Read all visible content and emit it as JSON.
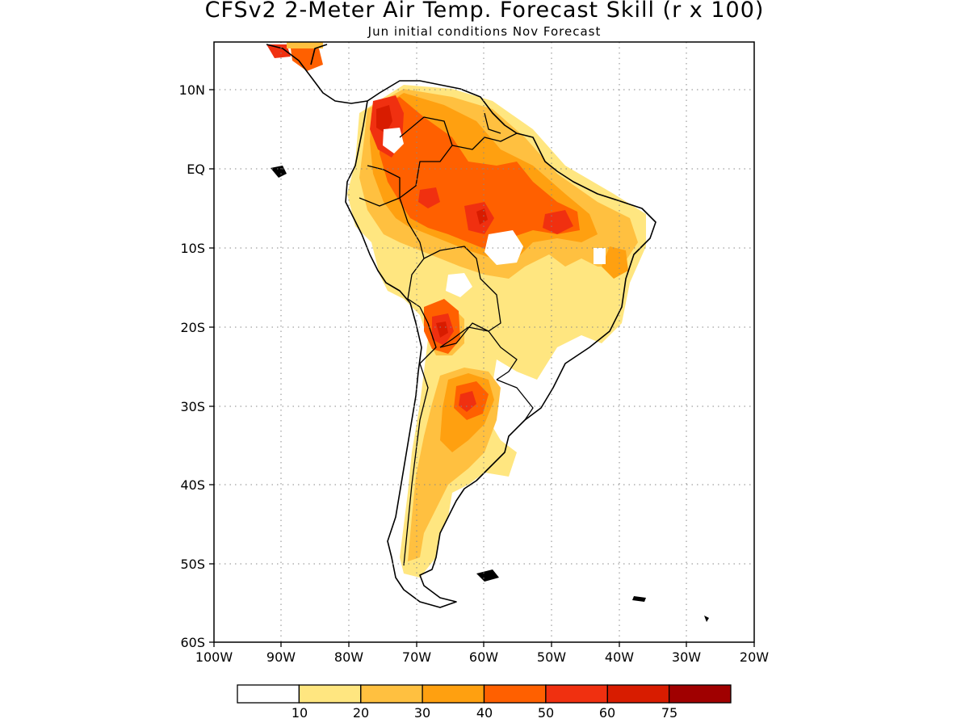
{
  "header": {
    "title": "CFSv2 2-Meter Air Temp. Forecast Skill (r x 100)",
    "subtitle": "Jun initial conditions  Nov Forecast"
  },
  "axes": {
    "lat_labels": [
      "10N",
      "EQ",
      "10S",
      "20S",
      "30S",
      "40S",
      "50S",
      "60S"
    ],
    "lon_labels": [
      "100W",
      "90W",
      "80W",
      "70W",
      "60W",
      "50W",
      "40W",
      "30W",
      "20W"
    ]
  },
  "legend": {
    "labels": [
      "10",
      "20",
      "30",
      "40",
      "50",
      "60",
      "75"
    ],
    "colors": [
      "#ffffff",
      "#ffe680",
      "#ffc040",
      "#ffa010",
      "#ff6000",
      "#f03010",
      "#d81c00",
      "#a00000"
    ]
  }
}
